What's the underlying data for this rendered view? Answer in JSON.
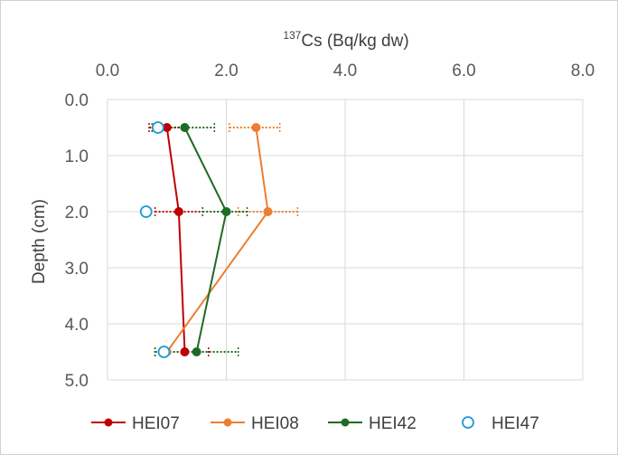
{
  "chart_data": {
    "type": "scatter",
    "title": "",
    "xlabel_sup": "137",
    "xlabel": "Cs (Bq/kg dw)",
    "ylabel": "Depth (cm)",
    "x_axis_position": "top",
    "y_axis_inverted": true,
    "xlim": [
      0,
      8
    ],
    "ylim": [
      0,
      5
    ],
    "x_ticks": [
      0,
      2,
      4,
      6,
      8
    ],
    "y_ticks": [
      0,
      1,
      2,
      3,
      4,
      5
    ],
    "x_tick_labels": [
      "0.0",
      "2.0",
      "4.0",
      "6.0",
      "8.0"
    ],
    "y_tick_labels": [
      "0.0",
      "1.0",
      "2.0",
      "3.0",
      "4.0",
      "5.0"
    ],
    "grid": true,
    "legend_position": "bottom",
    "series": [
      {
        "name": "HEI07",
        "color": "#c00000",
        "marker": "filled-circle",
        "line": true,
        "points": [
          {
            "x": 1.0,
            "y": 0.5
          },
          {
            "x": 1.2,
            "y": 2.0
          },
          {
            "x": 1.3,
            "y": 4.5
          }
        ],
        "error_x": [
          {
            "low": 0.7,
            "high": 1.3
          },
          {
            "low": 0.8,
            "high": 1.6
          },
          {
            "low": 0.8,
            "high": 1.7
          }
        ]
      },
      {
        "name": "HEI08",
        "color": "#ed7d31",
        "marker": "filled-circle",
        "line": true,
        "points": [
          {
            "x": 2.5,
            "y": 0.5
          },
          {
            "x": 2.7,
            "y": 2.0
          },
          {
            "x": 1.0,
            "y": 4.5
          }
        ],
        "error_x": [
          {
            "low": 2.05,
            "high": 2.9
          },
          {
            "low": 2.2,
            "high": 3.2
          },
          {
            "low": 0.8,
            "high": 1.3
          }
        ]
      },
      {
        "name": "HEI42",
        "color": "#1e6b24",
        "marker": "filled-circle",
        "line": true,
        "points": [
          {
            "x": 1.3,
            "y": 0.5
          },
          {
            "x": 2.0,
            "y": 2.0
          },
          {
            "x": 1.5,
            "y": 4.5
          }
        ],
        "error_x": [
          {
            "low": 0.75,
            "high": 1.8
          },
          {
            "low": 1.6,
            "high": 2.35
          },
          {
            "low": 0.8,
            "high": 2.2
          }
        ]
      },
      {
        "name": "HEI47",
        "color": "#1a9ad6",
        "marker": "open-circle",
        "line": false,
        "points": [
          {
            "x": 0.85,
            "y": 0.5
          },
          {
            "x": 0.65,
            "y": 2.0
          },
          {
            "x": 0.95,
            "y": 4.5
          }
        ],
        "error_x": []
      }
    ]
  }
}
